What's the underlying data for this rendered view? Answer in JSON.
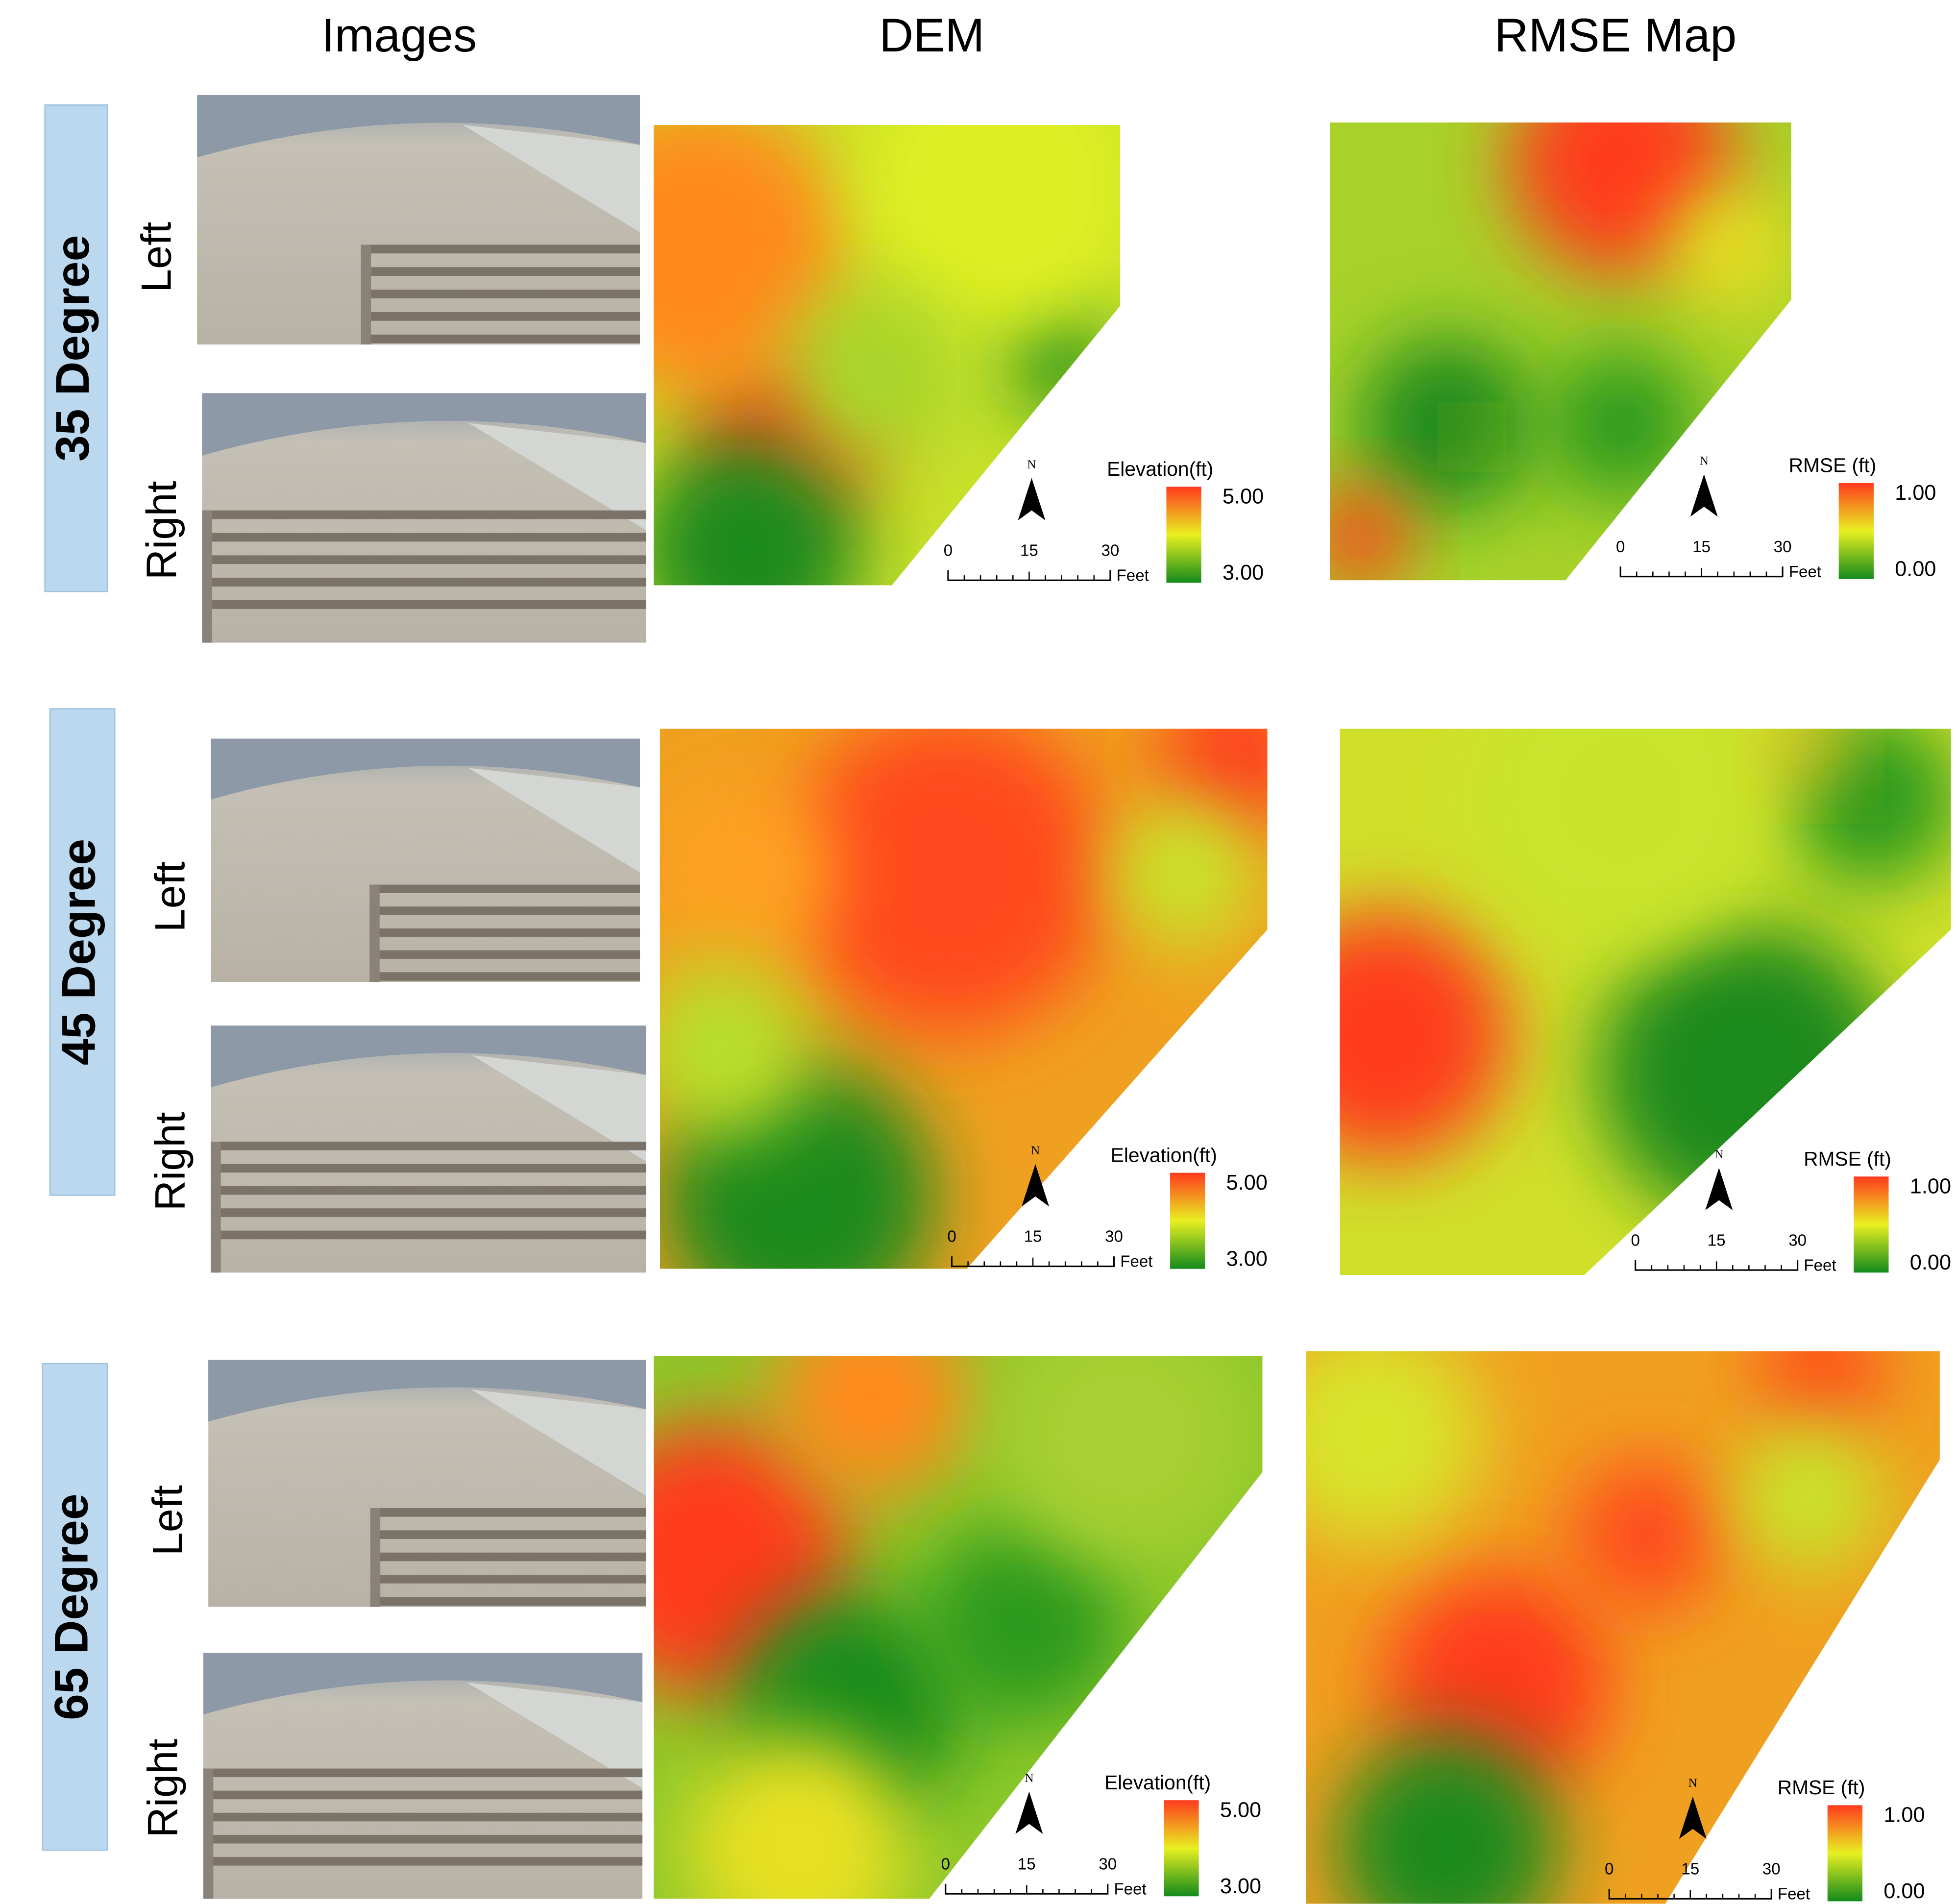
{
  "columns": [
    "Images",
    "DEM",
    "RMSE Map"
  ],
  "rows": [
    {
      "label": "35 Degree",
      "cameras": [
        "Left",
        "Right"
      ],
      "dem": {
        "legend_title": "Elevation(ft)",
        "high": "5.00",
        "low": "3.00",
        "north": "N",
        "scale": [
          "0",
          "15",
          "30"
        ],
        "scale_unit": "Feet"
      },
      "rmse": {
        "legend_title": "RMSE (ft)",
        "high": "1.00",
        "low": "0.00",
        "north": "N",
        "scale": [
          "0",
          "15",
          "30"
        ],
        "scale_unit": "Feet"
      }
    },
    {
      "label": "45 Degree",
      "cameras": [
        "Left",
        "Right"
      ],
      "dem": {
        "legend_title": "Elevation(ft)",
        "high": "5.00",
        "low": "3.00",
        "north": "N",
        "scale": [
          "0",
          "15",
          "30"
        ],
        "scale_unit": "Feet"
      },
      "rmse": {
        "legend_title": "RMSE (ft)",
        "high": "1.00",
        "low": "0.00",
        "north": "N",
        "scale": [
          "0",
          "15",
          "30"
        ],
        "scale_unit": "Feet"
      }
    },
    {
      "label": "65 Degree",
      "cameras": [
        "Left",
        "Right"
      ],
      "dem": {
        "legend_title": "Elevation(ft)",
        "high": "5.00",
        "low": "3.00",
        "north": "N",
        "scale": [
          "0",
          "15",
          "30"
        ],
        "scale_unit": "Feet"
      },
      "rmse": {
        "legend_title": "RMSE (ft)",
        "high": "1.00",
        "low": "0.00",
        "north": "N",
        "scale": [
          "0",
          "15",
          "30"
        ],
        "scale_unit": "Feet"
      }
    }
  ]
}
